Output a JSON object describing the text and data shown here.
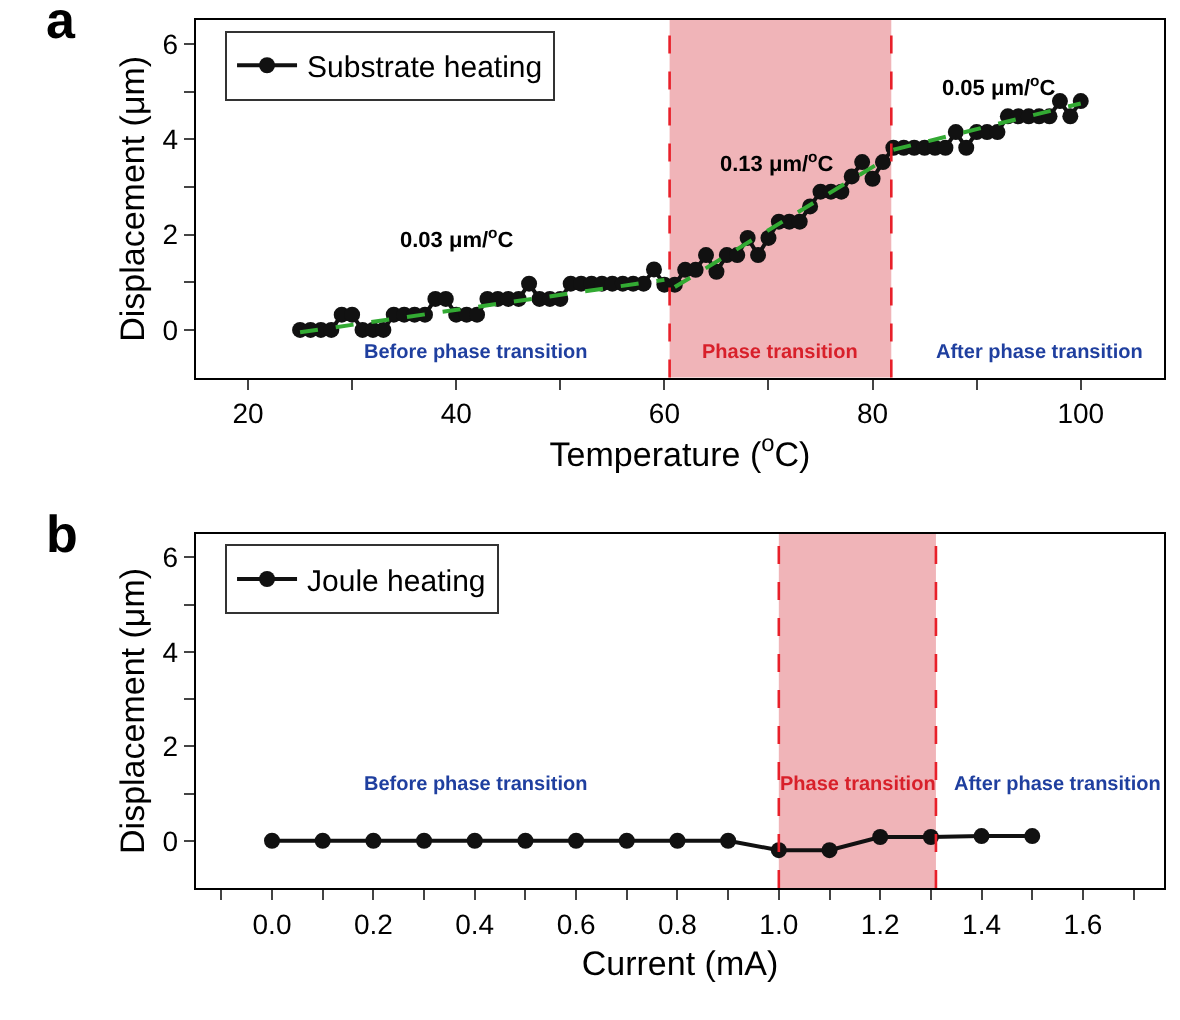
{
  "chart_data": [
    {
      "type": "line",
      "title": "a",
      "xlabel": "Temperature ($^{o}$C)",
      "ylabel": "Displacement (μm)",
      "xlim": [
        15,
        108
      ],
      "xticks": [
        20,
        {
          "value": 30,
          "label": null
        },
        40,
        {
          "value": 50,
          "label": null
        },
        60,
        {
          "value": 70,
          "label": null
        },
        80,
        {
          "value": 90,
          "label": null
        },
        100
      ],
      "ylim": [
        -1,
        6.5
      ],
      "yticks": [
        0,
        {
          "value": 1,
          "label": null
        },
        2,
        {
          "value": 3,
          "label": null
        },
        4,
        {
          "value": 5,
          "label": null
        },
        6
      ],
      "grid": false,
      "legend": "top left",
      "series": [
        {
          "name": "Substrate heating",
          "color": "#111111",
          "line_style": "solid",
          "marker": "circle",
          "x": [
            25,
            26,
            27,
            28,
            29,
            30,
            31,
            32,
            33,
            34,
            35,
            36,
            37,
            38,
            39,
            40,
            41,
            42,
            43,
            44,
            45,
            46,
            47,
            48,
            49,
            50,
            51,
            52,
            53,
            54,
            55,
            56,
            57,
            58,
            59,
            60,
            61,
            62,
            63,
            64,
            65,
            66,
            67,
            68,
            69,
            70,
            71,
            72,
            73,
            74,
            75,
            76,
            77,
            78,
            79,
            80,
            81,
            82,
            83,
            84,
            85,
            86,
            87,
            88,
            89,
            90,
            91,
            92,
            93,
            94,
            95,
            96,
            97,
            98,
            99,
            100
          ],
          "values": [
            0,
            0,
            0,
            0,
            0.32,
            0.32,
            0,
            0,
            0,
            0.32,
            0.32,
            0.32,
            0.32,
            0.65,
            0.65,
            0.32,
            0.32,
            0.32,
            0.65,
            0.65,
            0.65,
            0.65,
            0.97,
            0.65,
            0.65,
            0.65,
            0.97,
            0.97,
            0.97,
            0.97,
            0.97,
            0.97,
            0.97,
            0.97,
            1.27,
            0.95,
            0.95,
            1.26,
            1.26,
            1.57,
            1.22,
            1.57,
            1.57,
            1.93,
            1.57,
            1.93,
            2.27,
            2.27,
            2.27,
            2.59,
            2.9,
            2.9,
            2.9,
            3.22,
            3.52,
            3.17,
            3.52,
            3.82,
            3.82,
            3.82,
            3.82,
            3.82,
            3.82,
            4.15,
            3.82,
            4.15,
            4.15,
            4.15,
            4.48,
            4.48,
            4.48,
            4.48,
            4.48,
            4.8,
            4.48,
            4.8
          ]
        },
        {
          "color": "#33aa33",
          "line_style": "dashed",
          "marker": "none",
          "x": [
            25,
            60
          ],
          "values": [
            -0.05,
            1.05
          ]
        },
        {
          "color": "#33aa33",
          "line_style": "dashed",
          "marker": "none",
          "x": [
            61,
            81
          ],
          "values": [
            0.9,
            3.55
          ]
        },
        {
          "color": "#33aa33",
          "line_style": "dashed",
          "marker": "none",
          "x": [
            82,
            100
          ],
          "values": [
            3.78,
            4.75
          ]
        }
      ],
      "bands": [
        {
          "axis": "x",
          "from": 60.5,
          "to": 81.8,
          "label": "Phase transition",
          "color": "#f0b4b8"
        }
      ],
      "ref_lines": [
        {
          "axis": "x",
          "value": 60.5,
          "color": "#e8202a",
          "line_style": "dashed"
        },
        {
          "axis": "x",
          "value": 81.8,
          "color": "#e8202a",
          "line_style": "dashed"
        }
      ],
      "annotations": [
        "0.03 μm/$^{o}$C",
        "0.13 μm/$^{o}$C",
        "0.05 μm/$^{o}$C",
        "Before phase transition",
        "After phase transition"
      ]
    },
    {
      "type": "line",
      "title": "b",
      "xlabel": "Current (mA)",
      "ylabel": "Displacement (μm)",
      "xlim": [
        -0.15,
        1.76
      ],
      "xticks": [
        {
          "value": -0.1,
          "label": null
        },
        {
          "value": 0,
          "label": "0.0"
        },
        {
          "value": 0.1,
          "label": null
        },
        0.2,
        {
          "value": 0.3,
          "label": null
        },
        0.4,
        {
          "value": 0.5,
          "label": null
        },
        0.6,
        {
          "value": 0.7,
          "label": null
        },
        0.8,
        {
          "value": 0.9,
          "label": null
        },
        {
          "value": 1,
          "label": "1.0"
        },
        {
          "value": 1.1,
          "label": null
        },
        1.2,
        {
          "value": 1.3,
          "label": null
        },
        1.4,
        {
          "value": 1.5,
          "label": null
        },
        1.6,
        {
          "value": 1.7,
          "label": null
        }
      ],
      "ylim": [
        -1,
        6.5
      ],
      "yticks": [
        0,
        {
          "value": 1,
          "label": null
        },
        2,
        {
          "value": 3,
          "label": null
        },
        4,
        {
          "value": 5,
          "label": null
        },
        6
      ],
      "grid": false,
      "legend": "top left",
      "series": [
        {
          "name": "Joule heating",
          "color": "#111111",
          "line_style": "solid",
          "marker": "circle",
          "x": [
            0,
            0.1,
            0.2,
            0.3,
            0.4,
            0.5,
            0.6,
            0.7,
            0.8,
            0.9,
            1.0,
            1.1,
            1.2,
            1.3,
            1.4,
            1.5
          ],
          "values": [
            0,
            0,
            0,
            0,
            0,
            0,
            0,
            0,
            0,
            0,
            -0.2,
            -0.2,
            0.08,
            0.08,
            0.1,
            0.1
          ]
        }
      ],
      "bands": [
        {
          "axis": "x",
          "from": 1.0,
          "to": 1.31,
          "label": "Phase transition",
          "color": "#f0b4b8"
        }
      ],
      "ref_lines": [
        {
          "axis": "x",
          "value": 1.0,
          "color": "#e8202a",
          "line_style": "dashed"
        },
        {
          "axis": "x",
          "value": 1.31,
          "color": "#e8202a",
          "line_style": "dashed"
        }
      ],
      "annotations": [
        "Before phase transition",
        "After phase transition"
      ]
    }
  ]
}
